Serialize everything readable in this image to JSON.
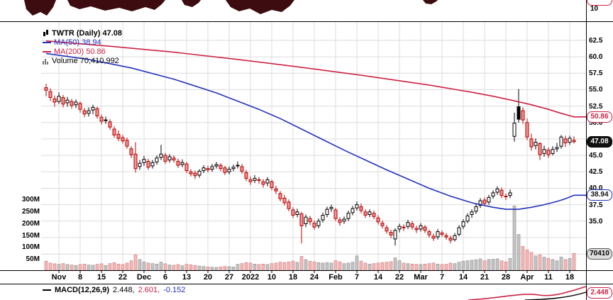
{
  "legend": {
    "symbol": "TWTR (Daily) 47.08",
    "ma50": "MA(50) 38.94",
    "ma200": "MA(200) 50.86",
    "volume": "Volume 70,410,992"
  },
  "top_pane": {
    "axis_label": "10"
  },
  "macd_legend": {
    "name": "MACD(12,26,9)",
    "macd_value": "2.448,",
    "signal_value": "2.601,",
    "hist_value": "-0.152"
  },
  "badges": {
    "ma200": "50.86",
    "price": "47.08",
    "ma50": "38.94",
    "volume": "70410",
    "macd": "2.448"
  },
  "colors": {
    "up": "#000000",
    "down": "#bb0000",
    "down_fill": "#ee9595",
    "ma50": "#2233bb",
    "ma200": "#cc2244",
    "volume_up": "#c4c4c4",
    "volume_down": "#f3b8b8",
    "grid": "#dcdcdc",
    "blob": "#3d0c10"
  },
  "chart_data": {
    "type": "candlestick",
    "symbol": "TWTR",
    "timeframe": "Daily",
    "last_price": 47.08,
    "ma50_value": 38.94,
    "ma200_value": 50.86,
    "last_volume": 70410992,
    "macd": {
      "fast": 12,
      "slow": 26,
      "signal": 9,
      "macd_line": 2.448,
      "signal_line": 2.601,
      "histogram": -0.152
    },
    "x_tick_labels": [
      "Nov",
      "8",
      "15",
      "22",
      "Dec",
      "6",
      "13",
      "20",
      "27",
      "2022",
      "10",
      "18",
      "24",
      "Feb",
      "7",
      "14",
      "22",
      "Mar",
      "7",
      "14",
      "21",
      "28",
      "Apr",
      "11",
      "18"
    ],
    "price_axis_labels": [
      62.5,
      60.0,
      57.5,
      55.0,
      52.5,
      50.0,
      47.5,
      45.0,
      42.5,
      40.0,
      37.5,
      35.0
    ],
    "extra_gridlines": [
      32.5,
      30.0
    ],
    "volume_axis": {
      "labels": [
        "300M",
        "250M",
        "200M",
        "150M",
        "100M",
        "50M"
      ],
      "values_m": [
        300,
        250,
        200,
        150,
        100,
        50
      ]
    },
    "candles": [
      [
        55.3,
        55.9,
        54.0,
        54.9,
        38
      ],
      [
        54.7,
        55.2,
        53.3,
        53.8,
        30
      ],
      [
        53.6,
        54.1,
        52.4,
        53.1,
        27
      ],
      [
        53.2,
        54.6,
        52.8,
        54.0,
        25
      ],
      [
        53.8,
        54.2,
        52.3,
        52.8,
        28
      ],
      [
        53.0,
        53.9,
        52.4,
        53.4,
        24
      ],
      [
        53.2,
        53.6,
        52.1,
        52.6,
        22
      ],
      [
        52.7,
        53.5,
        52.2,
        53.1,
        20
      ],
      [
        52.9,
        53.2,
        51.5,
        52.0,
        24
      ],
      [
        51.8,
        52.2,
        50.8,
        51.3,
        26
      ],
      [
        51.4,
        52.3,
        50.9,
        51.8,
        22
      ],
      [
        51.9,
        52.7,
        51.3,
        52.3,
        21
      ],
      [
        52.1,
        52.4,
        50.6,
        51.0,
        25
      ],
      [
        50.8,
        51.2,
        49.7,
        50.2,
        27
      ],
      [
        50.3,
        50.9,
        49.8,
        50.4,
        20
      ],
      [
        50.1,
        50.5,
        48.9,
        49.3,
        28
      ],
      [
        49.0,
        49.4,
        47.7,
        48.1,
        32
      ],
      [
        48.2,
        48.8,
        47.2,
        47.6,
        26
      ],
      [
        47.7,
        48.1,
        46.8,
        47.2,
        24
      ],
      [
        47.3,
        47.7,
        46.0,
        46.4,
        30
      ],
      [
        46.0,
        46.4,
        44.6,
        45.1,
        40
      ],
      [
        45.2,
        47.0,
        42.4,
        43.0,
        65
      ],
      [
        43.3,
        44.3,
        42.8,
        43.8,
        45
      ],
      [
        43.9,
        44.9,
        43.4,
        44.4,
        35
      ],
      [
        44.1,
        44.5,
        42.8,
        43.2,
        30
      ],
      [
        43.4,
        44.3,
        43.0,
        43.9,
        28
      ],
      [
        44.0,
        45.0,
        43.6,
        44.6,
        26
      ],
      [
        44.7,
        46.6,
        44.3,
        45.2,
        34
      ],
      [
        45.0,
        45.4,
        43.7,
        44.1,
        27
      ],
      [
        44.3,
        45.2,
        43.9,
        44.8,
        22
      ],
      [
        44.6,
        45.0,
        43.9,
        44.3,
        21
      ],
      [
        44.1,
        44.5,
        43.1,
        43.5,
        24
      ],
      [
        43.6,
        44.4,
        43.2,
        43.9,
        19
      ],
      [
        43.7,
        44.0,
        42.3,
        42.7,
        25
      ],
      [
        42.5,
        42.9,
        41.8,
        42.2,
        23
      ],
      [
        42.3,
        42.7,
        41.4,
        41.9,
        20
      ],
      [
        42.0,
        42.9,
        41.6,
        42.6,
        18
      ],
      [
        42.7,
        43.5,
        42.3,
        43.1,
        16
      ],
      [
        43.0,
        43.4,
        42.4,
        42.8,
        14
      ],
      [
        42.9,
        43.7,
        42.5,
        43.3,
        13
      ],
      [
        43.4,
        44.0,
        43.0,
        43.6,
        12
      ],
      [
        43.5,
        43.8,
        42.6,
        43.0,
        14
      ],
      [
        43.1,
        43.4,
        42.0,
        42.4,
        16
      ],
      [
        42.5,
        43.3,
        42.1,
        42.9,
        15
      ],
      [
        43.0,
        43.6,
        42.6,
        43.2,
        14
      ],
      [
        43.4,
        44.1,
        43.0,
        43.5,
        25
      ],
      [
        43.3,
        43.7,
        42.2,
        42.6,
        28
      ],
      [
        42.4,
        42.8,
        41.1,
        41.5,
        32
      ],
      [
        41.3,
        41.8,
        40.5,
        41.0,
        30
      ],
      [
        41.2,
        42.0,
        40.8,
        41.5,
        26
      ],
      [
        41.3,
        41.7,
        40.7,
        41.2,
        24
      ],
      [
        41.0,
        41.4,
        40.1,
        40.6,
        26
      ],
      [
        40.8,
        41.7,
        40.3,
        41.3,
        24
      ],
      [
        41.0,
        41.3,
        39.7,
        40.1,
        28
      ],
      [
        39.9,
        40.4,
        39.1,
        39.6,
        30
      ],
      [
        39.2,
        39.6,
        38.0,
        38.4,
        34
      ],
      [
        38.5,
        39.0,
        37.4,
        37.8,
        32
      ],
      [
        37.9,
        38.3,
        36.5,
        36.9,
        35
      ],
      [
        36.7,
        37.1,
        35.5,
        35.9,
        38
      ],
      [
        36.0,
        36.9,
        35.6,
        36.4,
        33
      ],
      [
        36.1,
        36.4,
        31.6,
        34.3,
        58
      ],
      [
        34.6,
        36.0,
        34.1,
        35.6,
        45
      ],
      [
        35.4,
        35.8,
        34.4,
        34.9,
        38
      ],
      [
        34.7,
        35.1,
        33.7,
        34.1,
        35
      ],
      [
        34.3,
        35.4,
        33.9,
        35.0,
        32
      ],
      [
        35.2,
        36.3,
        34.8,
        35.9,
        30
      ],
      [
        36.0,
        37.2,
        35.6,
        36.8,
        32
      ],
      [
        36.9,
        37.5,
        36.4,
        37.1,
        30
      ],
      [
        36.7,
        37.0,
        35.0,
        35.4,
        40
      ],
      [
        35.2,
        35.6,
        34.3,
        34.8,
        35
      ],
      [
        35.0,
        35.7,
        34.6,
        35.3,
        28
      ],
      [
        35.4,
        36.6,
        35.0,
        36.2,
        30
      ],
      [
        36.3,
        37.3,
        35.9,
        36.9,
        34
      ],
      [
        37.0,
        38.0,
        36.6,
        37.5,
        60
      ],
      [
        37.2,
        37.7,
        36.2,
        36.6,
        38
      ],
      [
        36.4,
        36.8,
        35.5,
        35.9,
        30
      ],
      [
        36.0,
        36.8,
        35.6,
        36.4,
        26
      ],
      [
        36.2,
        36.6,
        35.3,
        35.7,
        28
      ],
      [
        35.5,
        35.9,
        34.5,
        34.9,
        30
      ],
      [
        34.7,
        35.1,
        33.9,
        34.3,
        32
      ],
      [
        34.0,
        34.4,
        33.1,
        33.5,
        34
      ],
      [
        33.3,
        33.7,
        32.4,
        32.9,
        36
      ],
      [
        32.3,
        33.9,
        31.3,
        33.6,
        52
      ],
      [
        33.8,
        34.6,
        33.3,
        34.2,
        40
      ],
      [
        34.1,
        34.5,
        33.5,
        34.0,
        30
      ],
      [
        34.2,
        35.2,
        33.8,
        34.8,
        28
      ],
      [
        34.6,
        35.0,
        33.7,
        34.1,
        26
      ],
      [
        33.9,
        34.3,
        33.2,
        33.7,
        25
      ],
      [
        33.8,
        34.7,
        33.4,
        34.3,
        24
      ],
      [
        34.1,
        34.4,
        33.2,
        33.6,
        26
      ],
      [
        33.4,
        33.7,
        32.5,
        32.9,
        28
      ],
      [
        32.7,
        33.1,
        32.0,
        32.4,
        30
      ],
      [
        32.6,
        33.8,
        32.2,
        33.4,
        26
      ],
      [
        33.2,
        33.6,
        32.6,
        33.0,
        24
      ],
      [
        32.8,
        33.2,
        32.2,
        32.6,
        25
      ],
      [
        32.4,
        32.8,
        31.6,
        32.1,
        30
      ],
      [
        32.2,
        33.2,
        31.9,
        32.8,
        28
      ],
      [
        33.0,
        34.4,
        32.7,
        34.0,
        34
      ],
      [
        34.2,
        35.3,
        33.8,
        34.9,
        38
      ],
      [
        35.0,
        36.2,
        34.7,
        35.8,
        40
      ],
      [
        36.0,
        36.8,
        35.5,
        36.4,
        42
      ],
      [
        36.5,
        37.6,
        36.1,
        37.2,
        44
      ],
      [
        37.4,
        38.5,
        37.0,
        38.1,
        48
      ],
      [
        38.2,
        38.6,
        37.3,
        37.7,
        40
      ],
      [
        37.9,
        39.0,
        37.5,
        38.6,
        45
      ],
      [
        38.8,
        39.7,
        38.4,
        39.3,
        46
      ],
      [
        39.4,
        40.3,
        39.0,
        39.9,
        48
      ],
      [
        39.7,
        40.1,
        38.5,
        38.9,
        40
      ],
      [
        38.8,
        39.2,
        38.2,
        38.7,
        35
      ],
      [
        38.9,
        39.8,
        38.5,
        39.3,
        50
      ],
      [
        47.9,
        51.5,
        47.1,
        49.9,
        270
      ],
      [
        50.5,
        55.1,
        50.0,
        52.4,
        150,
        1
      ],
      [
        51.8,
        52.3,
        49.8,
        50.4,
        100
      ],
      [
        50.0,
        50.6,
        47.3,
        47.8,
        85
      ],
      [
        47.5,
        48.3,
        45.7,
        46.3,
        75
      ],
      [
        46.5,
        47.6,
        45.9,
        47.0,
        60
      ],
      [
        46.8,
        47.0,
        44.3,
        45.1,
        65
      ],
      [
        45.3,
        46.5,
        44.8,
        45.9,
        55
      ],
      [
        45.8,
        46.2,
        44.6,
        45.1,
        50
      ],
      [
        45.3,
        46.4,
        45.0,
        45.9,
        45
      ],
      [
        46.0,
        46.9,
        45.5,
        46.2,
        40
      ],
      [
        46.4,
        48.1,
        46.0,
        47.8,
        55
      ],
      [
        47.5,
        48.0,
        46.3,
        46.9,
        45
      ],
      [
        47.0,
        48.0,
        46.6,
        47.6,
        50
      ],
      [
        47.3,
        47.9,
        46.8,
        47.08,
        70.4
      ]
    ],
    "ma50_points": [
      [
        0,
        60.5
      ],
      [
        10,
        59.6
      ],
      [
        20,
        58.3
      ],
      [
        30,
        56.6
      ],
      [
        40,
        54.5
      ],
      [
        50,
        52.0
      ],
      [
        55,
        50.6
      ],
      [
        60,
        49.0
      ],
      [
        65,
        47.4
      ],
      [
        70,
        45.8
      ],
      [
        75,
        44.3
      ],
      [
        80,
        42.8
      ],
      [
        85,
        41.4
      ],
      [
        90,
        40.0
      ],
      [
        95,
        38.8
      ],
      [
        100,
        37.8
      ],
      [
        105,
        37.1
      ],
      [
        108,
        36.8
      ],
      [
        111,
        36.8
      ],
      [
        114,
        37.1
      ],
      [
        117,
        37.5
      ],
      [
        120,
        38.0
      ],
      [
        122,
        38.4
      ],
      [
        124,
        38.94
      ]
    ],
    "ma200_points": [
      [
        0,
        62.4
      ],
      [
        15,
        61.6
      ],
      [
        30,
        60.7
      ],
      [
        45,
        59.6
      ],
      [
        60,
        58.4
      ],
      [
        75,
        57.1
      ],
      [
        90,
        55.7
      ],
      [
        100,
        54.6
      ],
      [
        105,
        54.0
      ],
      [
        110,
        53.3
      ],
      [
        114,
        52.7
      ],
      [
        118,
        52.0
      ],
      [
        121,
        51.4
      ],
      [
        124,
        50.86
      ]
    ]
  }
}
